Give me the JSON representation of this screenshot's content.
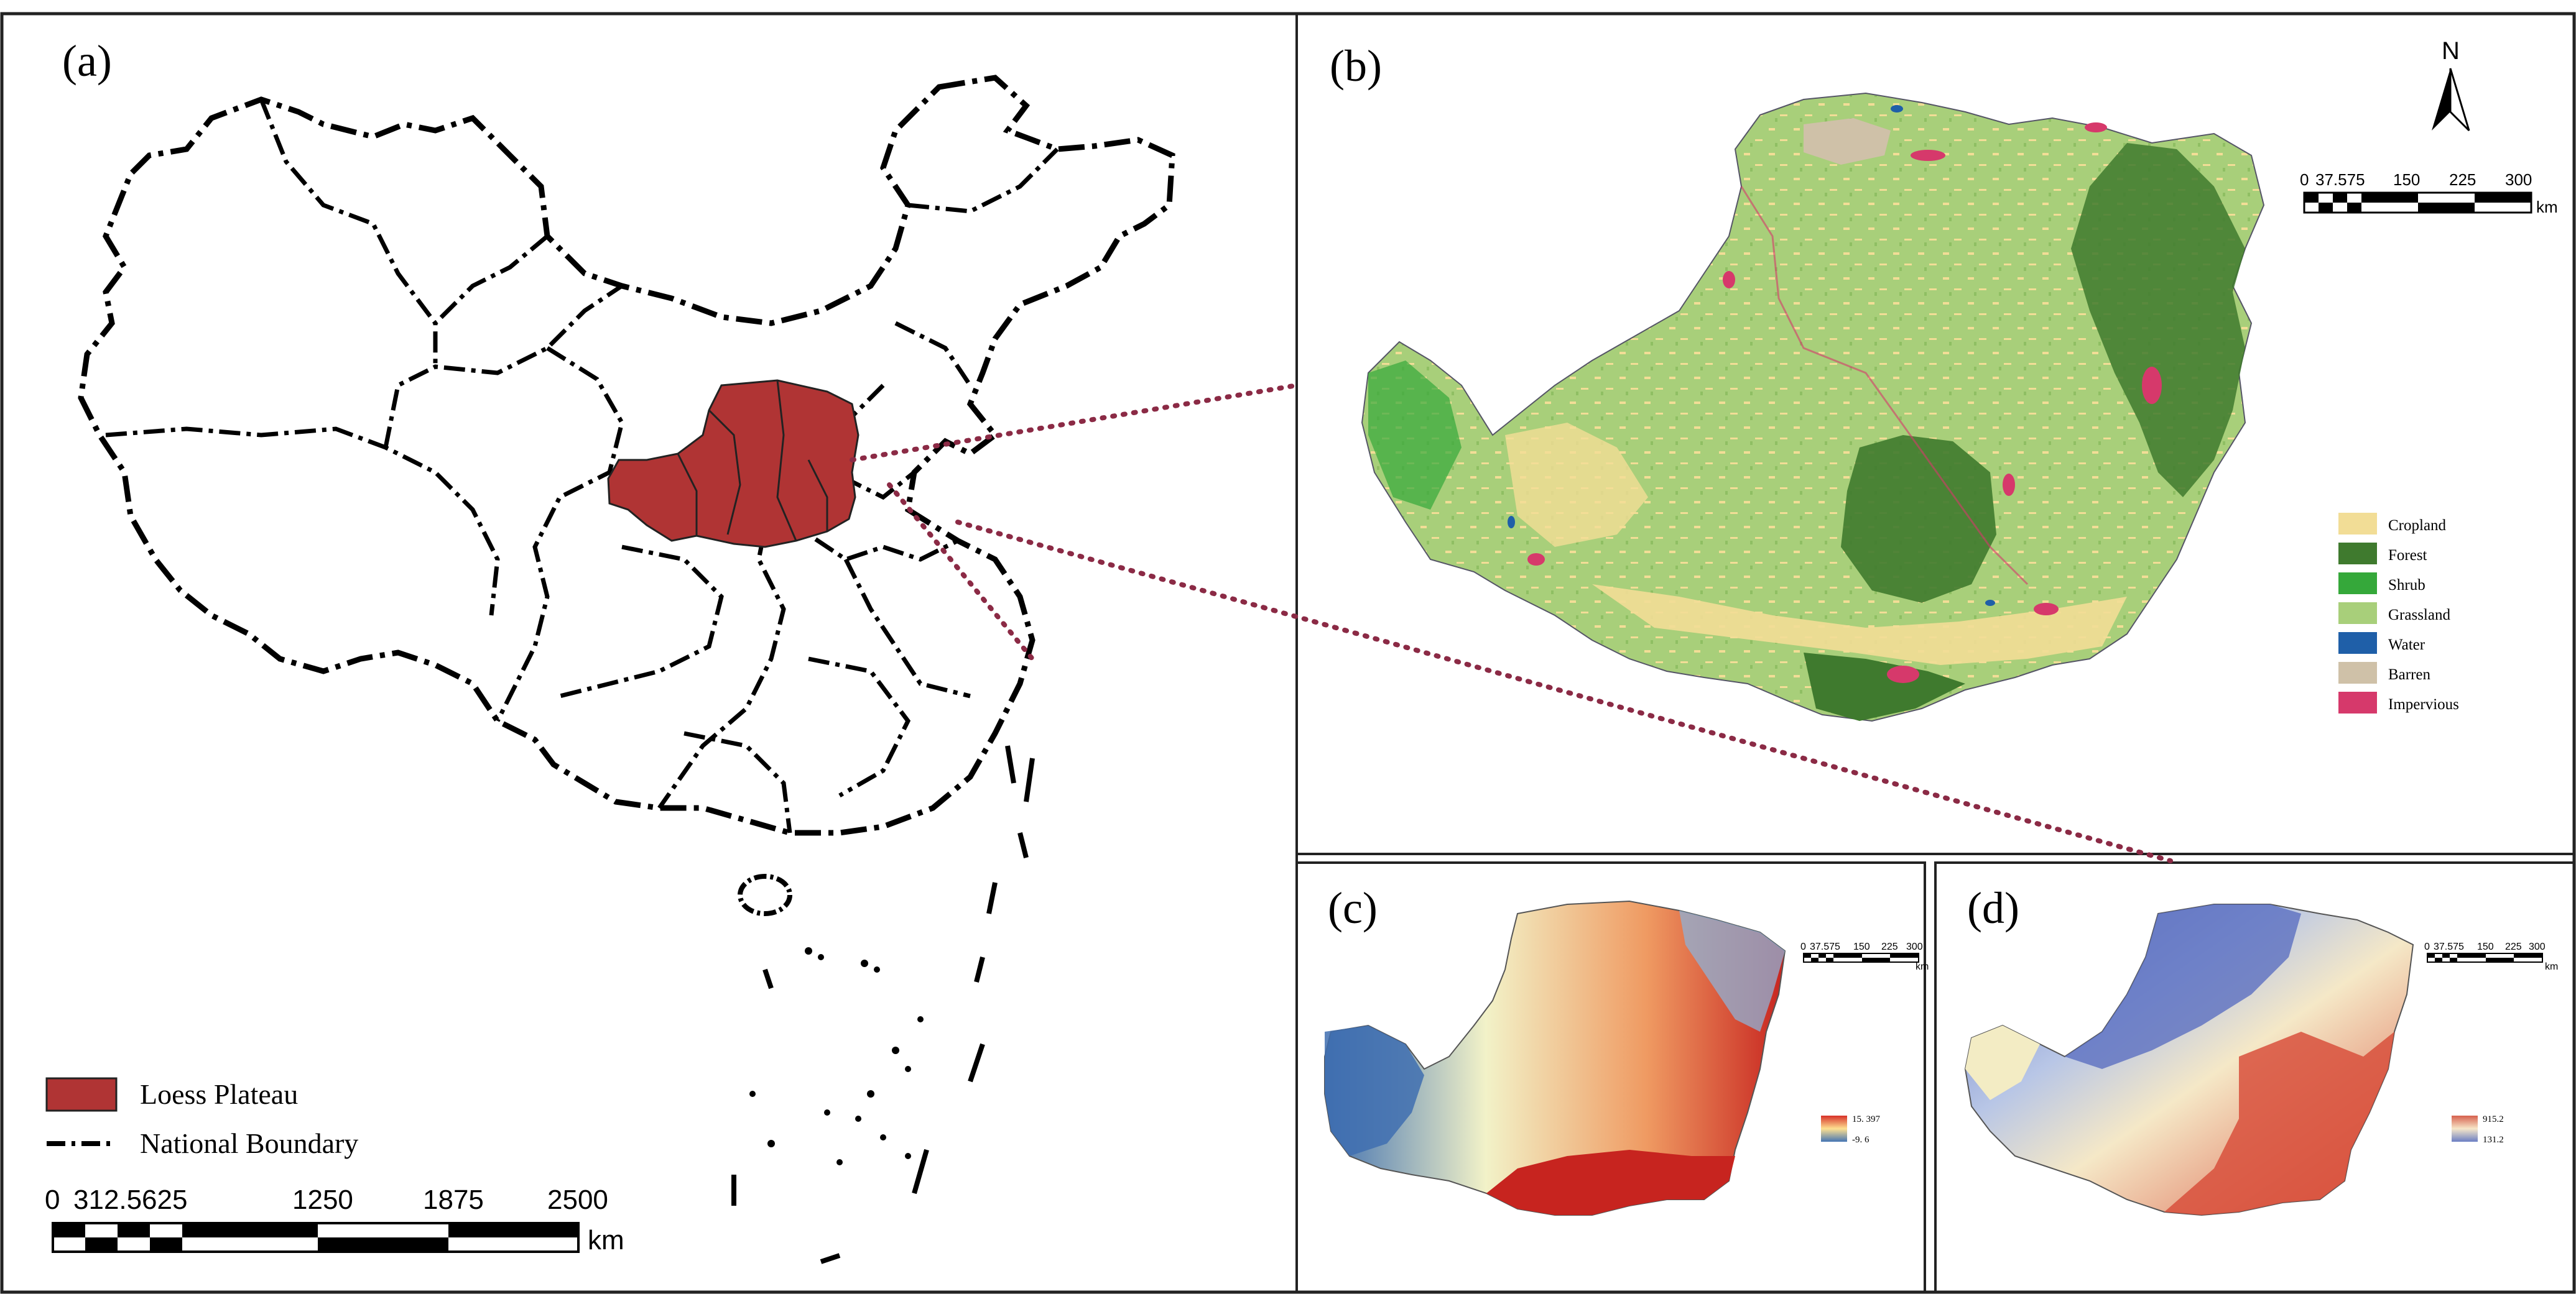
{
  "panels": {
    "a": {
      "label": "(a)"
    },
    "b": {
      "label": "(b)"
    },
    "c": {
      "label": "(c)"
    },
    "d": {
      "label": "(d)"
    }
  },
  "panel_a": {
    "legend": [
      {
        "label": "Loess Plateau",
        "color": "#b03434",
        "symbol": "filled-box"
      },
      {
        "label": "National Boundary",
        "symbol": "dash-dot-line"
      }
    ],
    "scale": {
      "ticks": [
        "0",
        "312.5",
        "625",
        "1250",
        "1875",
        "2500"
      ],
      "unit": "km"
    }
  },
  "panel_b": {
    "north_arrow": "N",
    "scale": {
      "ticks": [
        "0",
        "37.575",
        "150",
        "225",
        "300"
      ],
      "unit": "km"
    },
    "legend": [
      {
        "label": "Cropland",
        "color": "#f2dd96"
      },
      {
        "label": "Forest",
        "color": "#3f7a2e"
      },
      {
        "label": "Shrub",
        "color": "#35a83a"
      },
      {
        "label": "Grassland",
        "color": "#a8cf7a"
      },
      {
        "label": "Water",
        "color": "#1f5fa8"
      },
      {
        "label": "Barren",
        "color": "#cfc1a8"
      },
      {
        "label": "Impervious",
        "color": "#d6396b"
      }
    ]
  },
  "panel_c": {
    "scale": {
      "ticks": [
        "0",
        "37.575",
        "150",
        "225",
        "300"
      ],
      "unit": "km"
    },
    "colorbar": {
      "max": "15. 397",
      "min": "-9. 6",
      "high_color": "#d73027",
      "low_color": "#4575b4"
    }
  },
  "panel_d": {
    "scale": {
      "ticks": [
        "0",
        "37.575",
        "150",
        "225",
        "300"
      ],
      "unit": "km"
    },
    "colorbar": {
      "max": "915.2",
      "min": "131.2",
      "high_color": "#d6604d",
      "low_color": "#6b7fc4"
    }
  },
  "colors": {
    "loess": "#b03434",
    "connector": "#8b2a45"
  }
}
